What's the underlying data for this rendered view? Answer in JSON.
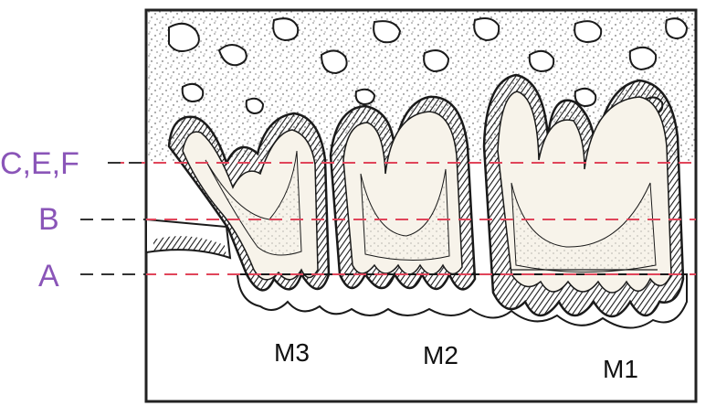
{
  "colors": {
    "level_label": "#8a55b8",
    "cut_line": "#e0455a",
    "ink": "#1a1a1a",
    "frame": "#222222",
    "background": "#ffffff",
    "pulp_fill": "#f7f3ea"
  },
  "level_labels": [
    {
      "id": "cef",
      "text": "C,E,F"
    },
    {
      "id": "b",
      "text": "B"
    },
    {
      "id": "a",
      "text": "A"
    }
  ],
  "tooth_labels": [
    {
      "id": "m3",
      "text": "M3"
    },
    {
      "id": "m2",
      "text": "M2"
    },
    {
      "id": "m1",
      "text": "M1"
    }
  ]
}
